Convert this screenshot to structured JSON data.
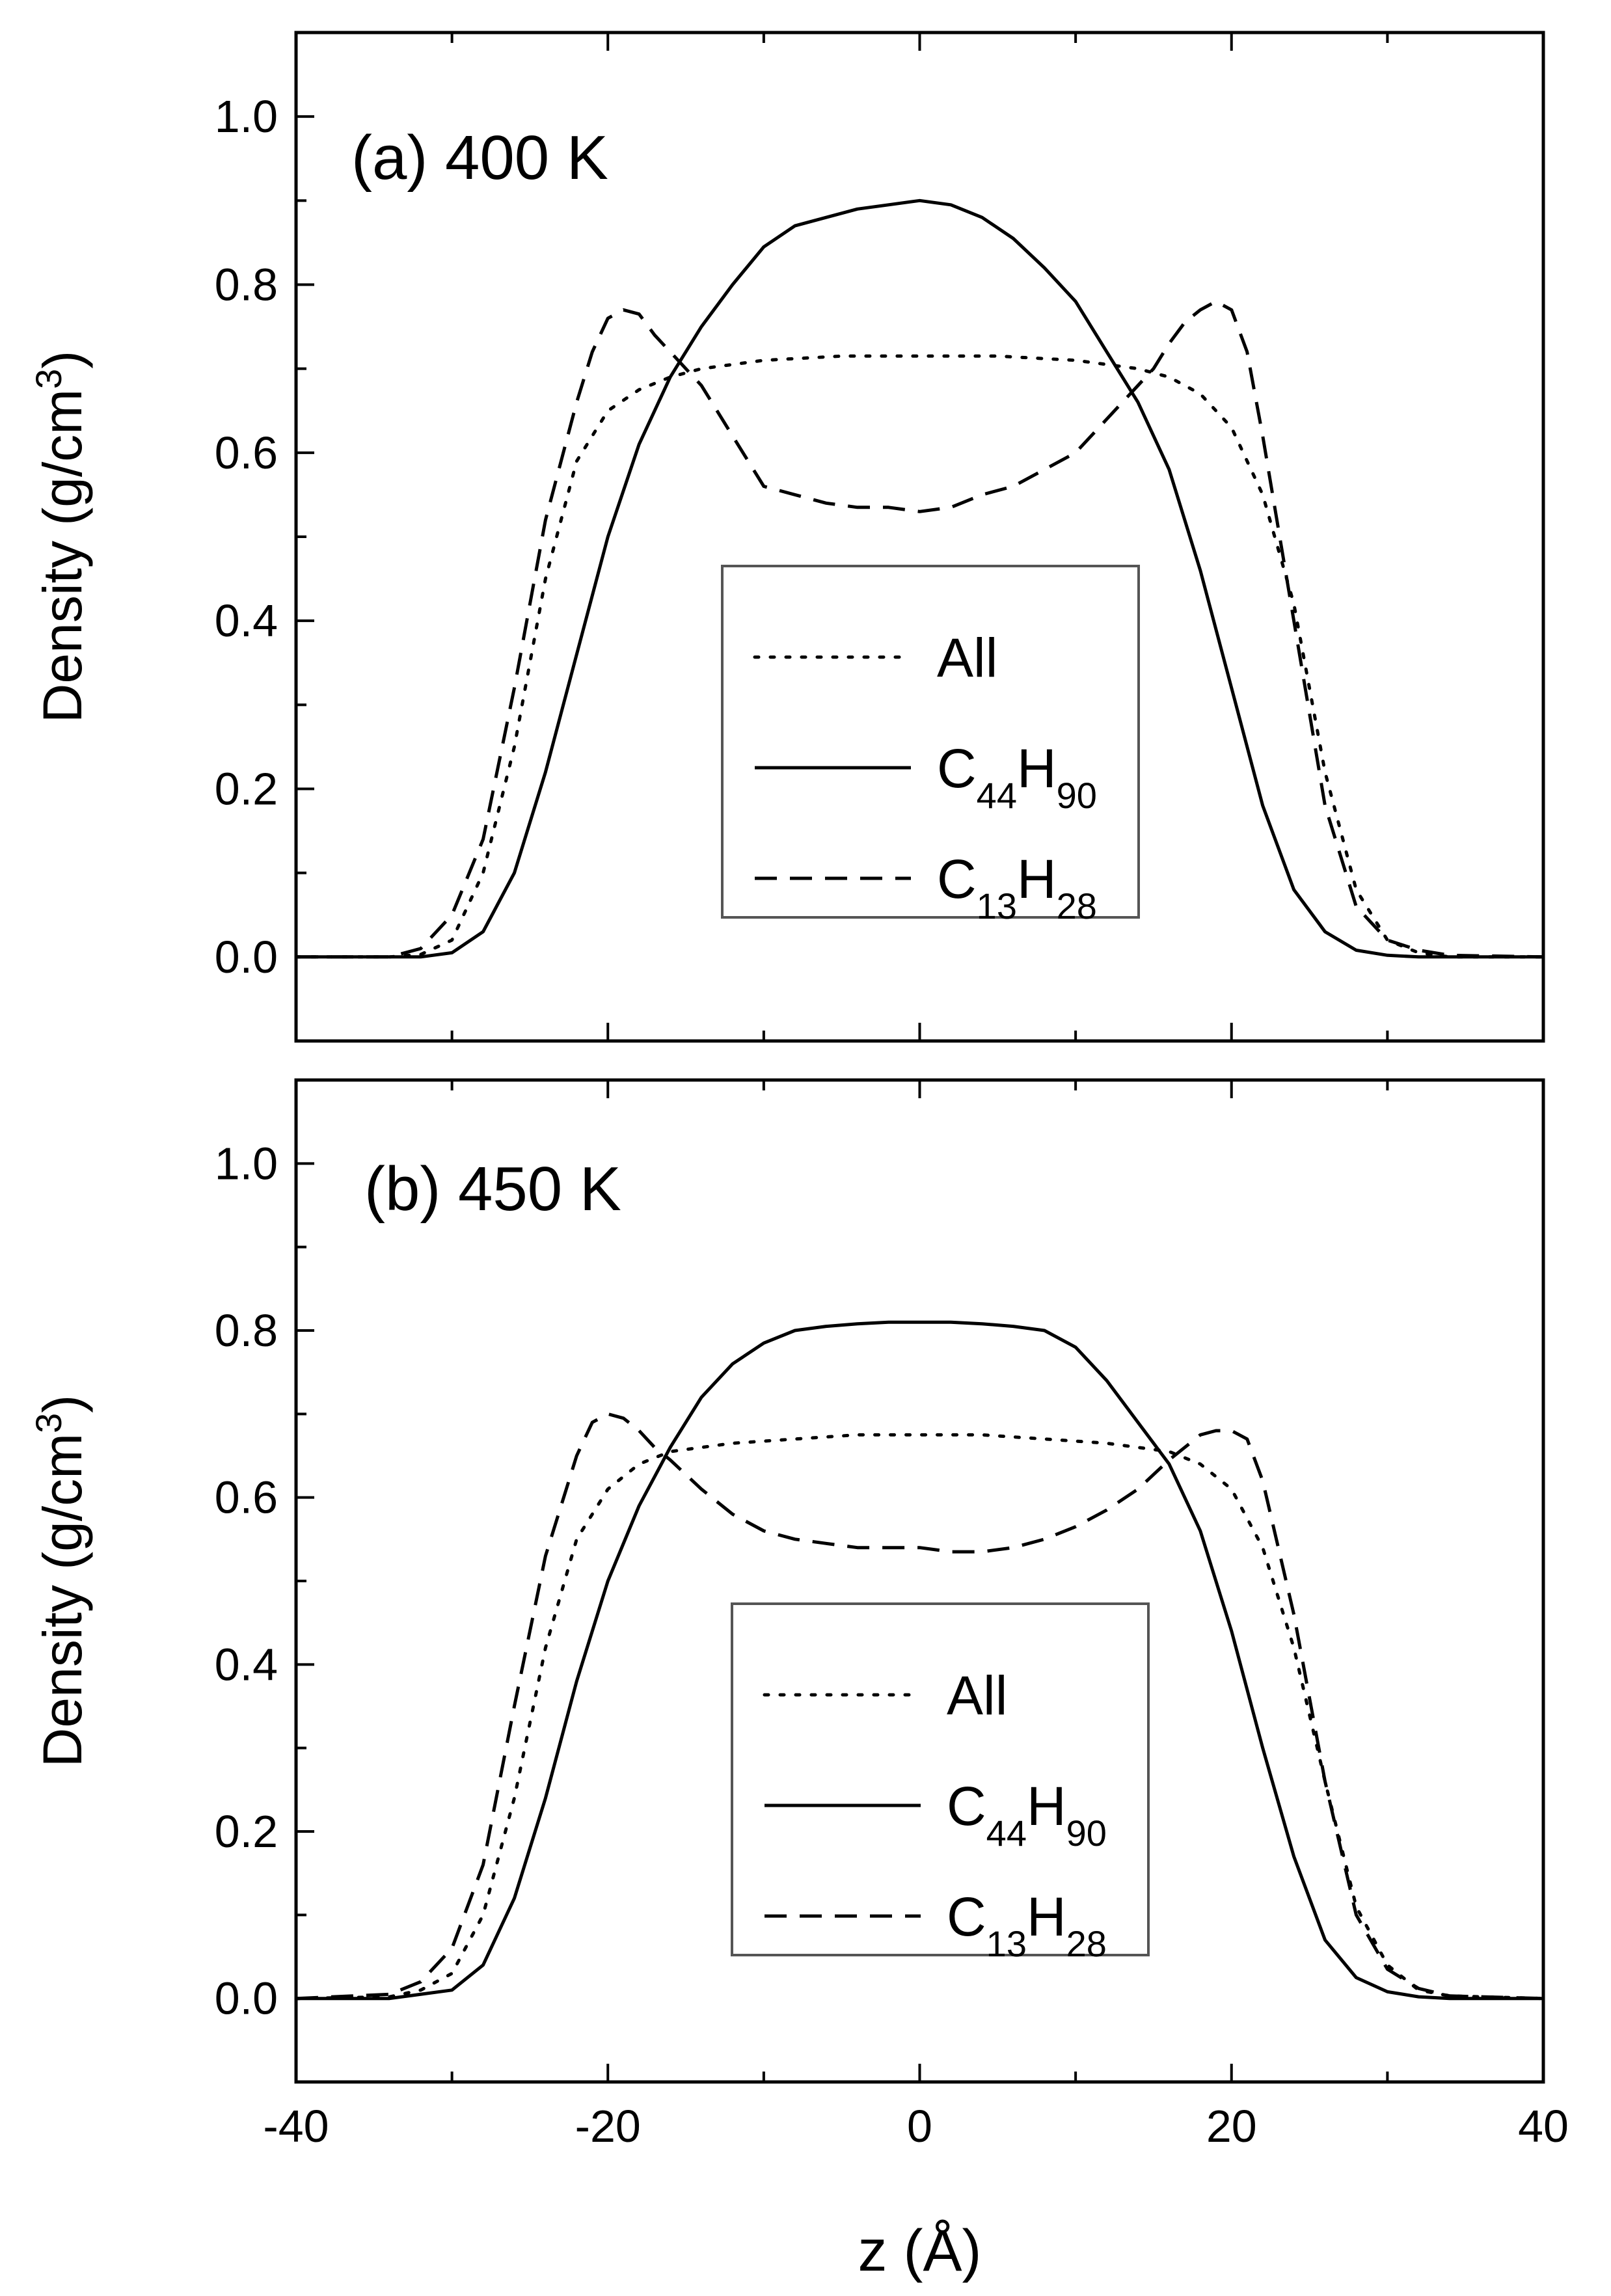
{
  "chart_data": [
    {
      "type": "line",
      "panel_label": "(a) 400 K",
      "xlabel": "",
      "ylabel": "Density (g/cm3)",
      "ylabel_parts": {
        "text": "Density (g/cm",
        "sup": "3",
        "close": ")"
      },
      "xlim": [
        -40,
        40
      ],
      "ylim": [
        -0.1,
        1.1
      ],
      "xticks": [],
      "yticks": [
        0.0,
        0.2,
        0.4,
        0.6,
        0.8,
        1.0
      ],
      "ytick_labels": [
        "0.0",
        "0.2",
        "0.4",
        "0.6",
        "0.8",
        "1.0"
      ],
      "legend_position": "center",
      "series": [
        {
          "name": "All",
          "legend": {
            "main": "All"
          },
          "style": "dotted",
          "color": "#000000",
          "x": [
            -40,
            -34,
            -32,
            -30,
            -28,
            -26,
            -24,
            -22,
            -20,
            -18,
            -16,
            -14,
            -10,
            -5,
            0,
            5,
            10,
            14,
            16,
            18,
            20,
            22,
            24,
            26,
            28,
            30,
            32,
            34,
            40
          ],
          "y": [
            0.0,
            0.0,
            0.003,
            0.02,
            0.1,
            0.25,
            0.45,
            0.59,
            0.65,
            0.675,
            0.69,
            0.7,
            0.71,
            0.715,
            0.715,
            0.715,
            0.71,
            0.7,
            0.69,
            0.67,
            0.63,
            0.55,
            0.42,
            0.22,
            0.08,
            0.02,
            0.005,
            0.0,
            0.0
          ]
        },
        {
          "name": "C44H90",
          "legend": {
            "main": "C",
            "sub1": "44",
            "mid": "H",
            "sub2": "90"
          },
          "style": "solid",
          "color": "#000000",
          "x": [
            -40,
            -32,
            -30,
            -28,
            -26,
            -24,
            -22,
            -20,
            -18,
            -16,
            -14,
            -12,
            -10,
            -8,
            -6,
            -4,
            -2,
            0,
            2,
            4,
            6,
            8,
            10,
            12,
            14,
            16,
            18,
            20,
            22,
            24,
            26,
            28,
            30,
            32,
            40
          ],
          "y": [
            0.0,
            0.0,
            0.005,
            0.03,
            0.1,
            0.22,
            0.36,
            0.5,
            0.61,
            0.69,
            0.75,
            0.8,
            0.845,
            0.87,
            0.88,
            0.89,
            0.895,
            0.9,
            0.895,
            0.88,
            0.855,
            0.82,
            0.78,
            0.72,
            0.66,
            0.58,
            0.46,
            0.32,
            0.18,
            0.08,
            0.03,
            0.008,
            0.002,
            0.0,
            0.0
          ]
        },
        {
          "name": "C13H28",
          "legend": {
            "main": "C",
            "sub1": "13",
            "mid": "H",
            "sub2": "28"
          },
          "style": "dashed",
          "color": "#000000",
          "x": [
            -40,
            -34,
            -32,
            -30,
            -28,
            -26,
            -24,
            -22,
            -21,
            -20,
            -19,
            -18,
            -17,
            -16,
            -15,
            -14,
            -12,
            -10,
            -8,
            -6,
            -4,
            -2,
            0,
            2,
            4,
            6,
            8,
            10,
            12,
            14,
            15,
            16,
            17,
            18,
            19,
            20,
            21,
            22,
            24,
            26,
            28,
            30,
            32,
            34,
            40
          ],
          "y": [
            0.0,
            0.0,
            0.01,
            0.05,
            0.14,
            0.32,
            0.52,
            0.66,
            0.72,
            0.76,
            0.77,
            0.765,
            0.74,
            0.72,
            0.7,
            0.68,
            0.62,
            0.56,
            0.55,
            0.54,
            0.535,
            0.535,
            0.53,
            0.535,
            0.55,
            0.56,
            0.58,
            0.6,
            0.64,
            0.68,
            0.7,
            0.73,
            0.755,
            0.77,
            0.78,
            0.77,
            0.72,
            0.62,
            0.4,
            0.18,
            0.06,
            0.02,
            0.008,
            0.002,
            0.0
          ]
        }
      ]
    },
    {
      "type": "line",
      "panel_label": "(b) 450 K",
      "xlabel": "z (Å)",
      "ylabel": "Density (g/cm3)",
      "ylabel_parts": {
        "text": "Density (g/cm",
        "sup": "3",
        "close": ")"
      },
      "xlim": [
        -40,
        40
      ],
      "ylim": [
        -0.1,
        1.1
      ],
      "xticks": [
        -40,
        -20,
        0,
        20,
        40
      ],
      "xtick_labels": [
        "-40",
        "-20",
        "0",
        "20",
        "40"
      ],
      "yticks": [
        0.0,
        0.2,
        0.4,
        0.6,
        0.8,
        1.0
      ],
      "ytick_labels": [
        "0.0",
        "0.2",
        "0.4",
        "0.6",
        "0.8",
        "1.0"
      ],
      "legend_position": "center",
      "series": [
        {
          "name": "All",
          "legend": {
            "main": "All"
          },
          "style": "dotted",
          "color": "#000000",
          "x": [
            -40,
            -34,
            -32,
            -30,
            -28,
            -26,
            -24,
            -22,
            -20,
            -18,
            -16,
            -12,
            -8,
            -4,
            0,
            4,
            8,
            12,
            16,
            18,
            20,
            22,
            24,
            26,
            28,
            30,
            32,
            34,
            40
          ],
          "y": [
            0.0,
            0.002,
            0.01,
            0.03,
            0.1,
            0.24,
            0.42,
            0.55,
            0.61,
            0.64,
            0.655,
            0.665,
            0.67,
            0.675,
            0.675,
            0.675,
            0.67,
            0.665,
            0.655,
            0.64,
            0.61,
            0.54,
            0.42,
            0.26,
            0.11,
            0.04,
            0.01,
            0.003,
            0.0
          ]
        },
        {
          "name": "C44H90",
          "legend": {
            "main": "C",
            "sub1": "44",
            "mid": "H",
            "sub2": "90"
          },
          "style": "solid",
          "color": "#000000",
          "x": [
            -40,
            -34,
            -30,
            -28,
            -26,
            -24,
            -22,
            -20,
            -18,
            -16,
            -14,
            -12,
            -10,
            -8,
            -6,
            -4,
            -2,
            0,
            2,
            4,
            6,
            8,
            10,
            12,
            14,
            16,
            18,
            20,
            22,
            24,
            26,
            28,
            30,
            32,
            34,
            40
          ],
          "y": [
            0.0,
            0.0,
            0.01,
            0.04,
            0.12,
            0.24,
            0.38,
            0.5,
            0.59,
            0.66,
            0.72,
            0.76,
            0.785,
            0.8,
            0.805,
            0.808,
            0.81,
            0.81,
            0.81,
            0.808,
            0.805,
            0.8,
            0.78,
            0.74,
            0.69,
            0.64,
            0.56,
            0.44,
            0.3,
            0.17,
            0.07,
            0.025,
            0.008,
            0.002,
            0.0,
            0.0
          ]
        },
        {
          "name": "C13H28",
          "legend": {
            "main": "C",
            "sub1": "13",
            "mid": "H",
            "sub2": "28"
          },
          "style": "dashed",
          "color": "#000000",
          "x": [
            -40,
            -34,
            -32,
            -30,
            -28,
            -26,
            -24,
            -22,
            -21,
            -20,
            -19,
            -18,
            -17,
            -16,
            -14,
            -12,
            -10,
            -8,
            -6,
            -4,
            -2,
            0,
            2,
            4,
            6,
            8,
            10,
            12,
            14,
            16,
            17,
            18,
            19,
            20,
            21,
            22,
            24,
            26,
            28,
            30,
            32,
            34,
            40
          ],
          "y": [
            0.0,
            0.005,
            0.02,
            0.06,
            0.16,
            0.35,
            0.53,
            0.65,
            0.69,
            0.7,
            0.695,
            0.68,
            0.66,
            0.645,
            0.61,
            0.58,
            0.56,
            0.55,
            0.545,
            0.54,
            0.54,
            0.54,
            0.535,
            0.535,
            0.54,
            0.55,
            0.565,
            0.585,
            0.61,
            0.645,
            0.66,
            0.675,
            0.68,
            0.68,
            0.67,
            0.62,
            0.46,
            0.26,
            0.1,
            0.035,
            0.012,
            0.003,
            0.0
          ]
        }
      ]
    }
  ]
}
